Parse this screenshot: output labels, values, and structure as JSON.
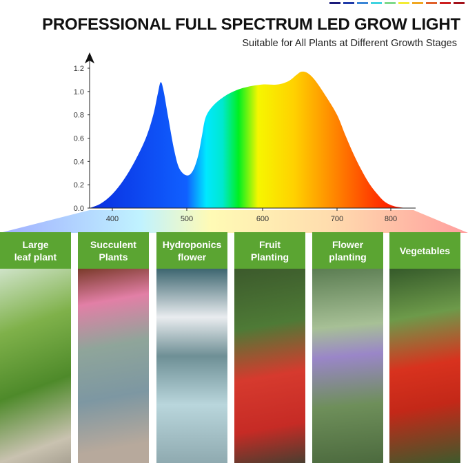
{
  "header": {
    "title": "PROFESSIONAL FULL SPECTRUM LED GROW LIGHT",
    "subtitle": "Suitable for All Plants at Different Growth Stages"
  },
  "swatch_colors": [
    "#1a1a7a",
    "#1f3aa8",
    "#3a86d6",
    "#3fd3e0",
    "#7ed98a",
    "#f3ec34",
    "#f0a722",
    "#e0602a",
    "#cc1f1f",
    "#a3121a"
  ],
  "chart_data": {
    "type": "area",
    "xlim": [
      370,
      830
    ],
    "ylim": [
      0,
      1.2
    ],
    "x_ticks": [
      400,
      500,
      600,
      700,
      800
    ],
    "x_tick_labels": [
      "400",
      "500",
      "600",
      "700",
      "800"
    ],
    "y_ticks": [
      0,
      0.2,
      0.4,
      0.6,
      0.8,
      1.0,
      1.2
    ],
    "y_tick_labels": [
      "0.0",
      "0.2",
      "0.4",
      "0.6",
      "0.8",
      "1.0",
      "1.2"
    ],
    "grid": false,
    "x": [
      370,
      385,
      400,
      415,
      430,
      445,
      455,
      461,
      465,
      469,
      475,
      483,
      490,
      500,
      508,
      515,
      520,
      525,
      535,
      550,
      565,
      580,
      600,
      620,
      635,
      645,
      652,
      660,
      670,
      685,
      700,
      715,
      730,
      745,
      760,
      775,
      790,
      805,
      820
    ],
    "values": [
      0,
      0.04,
      0.12,
      0.24,
      0.4,
      0.6,
      0.8,
      0.98,
      1.08,
      1.0,
      0.78,
      0.5,
      0.34,
      0.28,
      0.32,
      0.45,
      0.62,
      0.78,
      0.88,
      0.96,
      1.01,
      1.04,
      1.06,
      1.06,
      1.09,
      1.14,
      1.17,
      1.16,
      1.1,
      0.96,
      0.8,
      0.63,
      0.47,
      0.33,
      0.21,
      0.12,
      0.05,
      0.015,
      0
    ]
  },
  "categories": [
    {
      "label": "Large\nleaf plant",
      "photo": "leaf-plant-photo"
    },
    {
      "label": "Succulent\nPlants",
      "photo": "succulent-photo"
    },
    {
      "label": "Hydroponics\nflower",
      "photo": "hydroponics-photo"
    },
    {
      "label": "Fruit\nPlanting",
      "photo": "strawberry-photo"
    },
    {
      "label": "Flower\nplanting",
      "photo": "flower-photo"
    },
    {
      "label": "Vegetables",
      "photo": "tomato-photo"
    }
  ]
}
